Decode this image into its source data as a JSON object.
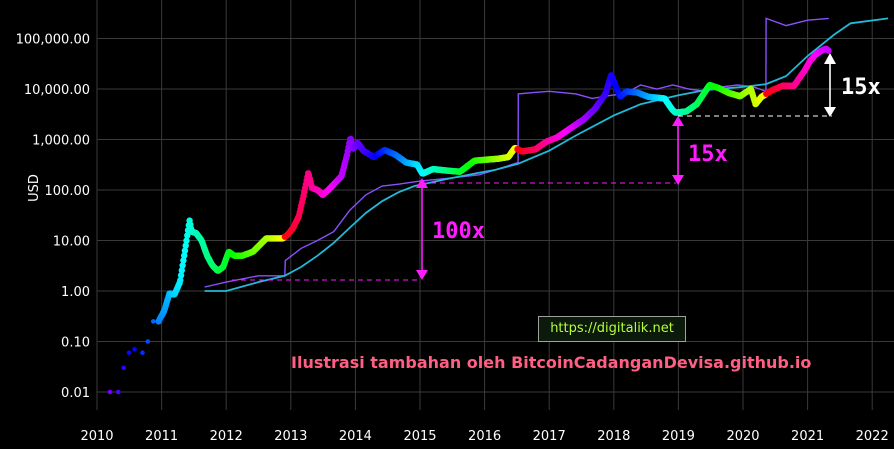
{
  "chart_data": {
    "type": "line",
    "scale": "log",
    "ylabel": "USD",
    "y_ticks": [
      0.01,
      0.1,
      1,
      10,
      100,
      1000,
      10000,
      100000
    ],
    "y_tick_labels": [
      "0.01",
      "0.10",
      "1.00",
      "10.00",
      "100.00",
      "1,000.00",
      "10,000.00",
      "100,000.00"
    ],
    "x_tick_labels": [
      "2010",
      "2011",
      "2012",
      "2013",
      "2014",
      "2015",
      "2016",
      "2017",
      "2018",
      "2019",
      "2020",
      "2021",
      "2022"
    ],
    "xlim": [
      "2010-01-01",
      "2022-04-01"
    ],
    "ylim": [
      0.005,
      300000
    ],
    "grid": true,
    "series": [
      {
        "color": "#ffffff",
        "style": "rainbow dots",
        "points": [
          [
            "2010-03-15",
            0.01
          ],
          [
            "2010-05-01",
            0.01
          ],
          [
            "2010-06-01",
            0.03
          ],
          [
            "2010-07-01",
            0.06
          ],
          [
            "2010-08-01",
            0.07
          ],
          [
            "2010-09-15",
            0.06
          ],
          [
            "2010-10-15",
            0.1
          ],
          [
            "2010-11-15",
            0.25
          ],
          [
            "2010-12-15",
            0.25
          ],
          [
            "2011-01-15",
            0.4
          ],
          [
            "2011-02-15",
            0.9
          ],
          [
            "2011-03-15",
            0.85
          ],
          [
            "2011-04-15",
            1.5
          ],
          [
            "2011-05-15",
            7
          ],
          [
            "2011-06-08",
            25
          ],
          [
            "2011-06-20",
            15
          ],
          [
            "2011-07-15",
            14
          ],
          [
            "2011-08-15",
            10
          ],
          [
            "2011-09-15",
            5
          ],
          [
            "2011-10-15",
            3.2
          ],
          [
            "2011-11-15",
            2.5
          ],
          [
            "2011-12-15",
            3
          ],
          [
            "2012-01-15",
            6
          ],
          [
            "2012-02-15",
            5
          ],
          [
            "2012-04-01",
            5
          ],
          [
            "2012-06-01",
            6
          ],
          [
            "2012-08-15",
            11
          ],
          [
            "2012-09-15",
            11
          ],
          [
            "2012-11-15",
            11
          ],
          [
            "2012-12-15",
            13
          ],
          [
            "2013-01-15",
            18
          ],
          [
            "2013-02-15",
            30
          ],
          [
            "2013-03-15",
            80
          ],
          [
            "2013-04-10",
            220
          ],
          [
            "2013-05-01",
            110
          ],
          [
            "2013-06-01",
            100
          ],
          [
            "2013-07-01",
            80
          ],
          [
            "2013-08-01",
            100
          ],
          [
            "2013-09-01",
            130
          ],
          [
            "2013-10-15",
            190
          ],
          [
            "2013-11-15",
            500
          ],
          [
            "2013-12-04",
            1100
          ],
          [
            "2013-12-20",
            650
          ],
          [
            "2014-01-15",
            850
          ],
          [
            "2014-02-15",
            600
          ],
          [
            "2014-04-15",
            450
          ],
          [
            "2014-06-15",
            620
          ],
          [
            "2014-08-15",
            500
          ],
          [
            "2014-10-15",
            350
          ],
          [
            "2014-12-15",
            320
          ],
          [
            "2015-01-15",
            210
          ],
          [
            "2015-03-15",
            260
          ],
          [
            "2015-06-15",
            240
          ],
          [
            "2015-08-15",
            230
          ],
          [
            "2015-11-05",
            380
          ],
          [
            "2016-01-15",
            400
          ],
          [
            "2016-03-15",
            415
          ],
          [
            "2016-05-15",
            450
          ],
          [
            "2016-06-20",
            680
          ],
          [
            "2016-08-01",
            580
          ],
          [
            "2016-10-15",
            640
          ],
          [
            "2016-12-15",
            900
          ],
          [
            "2017-02-15",
            1100
          ],
          [
            "2017-05-15",
            1800
          ],
          [
            "2017-07-15",
            2500
          ],
          [
            "2017-09-15",
            4000
          ],
          [
            "2017-11-15",
            8000
          ],
          [
            "2017-12-17",
            19000
          ],
          [
            "2018-02-06",
            7000
          ],
          [
            "2018-03-15",
            9000
          ],
          [
            "2018-05-15",
            8500
          ],
          [
            "2018-07-15",
            7000
          ],
          [
            "2018-10-15",
            6500
          ],
          [
            "2018-11-25",
            4000
          ],
          [
            "2018-12-15",
            3400
          ],
          [
            "2019-02-15",
            3600
          ],
          [
            "2019-04-15",
            5000
          ],
          [
            "2019-06-26",
            12000
          ],
          [
            "2019-08-15",
            10500
          ],
          [
            "2019-10-15",
            8300
          ],
          [
            "2019-12-15",
            7200
          ],
          [
            "2020-02-15",
            10000
          ],
          [
            "2020-03-12",
            5000
          ],
          [
            "2020-04-15",
            7000
          ],
          [
            "2020-06-15",
            9500
          ],
          [
            "2020-08-15",
            11700
          ],
          [
            "2020-10-15",
            11500
          ],
          [
            "2020-12-15",
            23000
          ],
          [
            "2021-01-15",
            36000
          ],
          [
            "2021-02-15",
            48000
          ],
          [
            "2021-03-15",
            56000
          ],
          [
            "2021-04-14",
            63000
          ],
          [
            "2021-05-01",
            57000
          ]
        ]
      },
      {
        "color": "#8a4fff",
        "points": [
          [
            "2011-09-01",
            1.2
          ],
          [
            "2012-01-01",
            1.5
          ],
          [
            "2012-07-01",
            2
          ],
          [
            "2012-11-28",
            2
          ],
          [
            "2012-12-01",
            4
          ],
          [
            "2013-03-01",
            7
          ],
          [
            "2013-06-01",
            10
          ],
          [
            "2013-09-01",
            15
          ],
          [
            "2013-12-01",
            40
          ],
          [
            "2014-03-01",
            80
          ],
          [
            "2014-06-01",
            120
          ],
          [
            "2014-09-01",
            130
          ],
          [
            "2015-01-01",
            150
          ],
          [
            "2015-06-01",
            170
          ],
          [
            "2015-12-01",
            200
          ],
          [
            "2016-03-01",
            250
          ],
          [
            "2016-07-09",
            350
          ],
          [
            "2016-07-10",
            8000
          ],
          [
            "2016-10-01",
            8500
          ],
          [
            "2017-01-01",
            9000
          ],
          [
            "2017-06-01",
            8000
          ],
          [
            "2017-09-01",
            6500
          ],
          [
            "2017-12-17",
            7500
          ],
          [
            "2018-03-01",
            8000
          ],
          [
            "2018-06-01",
            12000
          ],
          [
            "2018-09-01",
            10000
          ],
          [
            "2018-12-01",
            12000
          ],
          [
            "2019-03-01",
            10000
          ],
          [
            "2019-06-01",
            9000
          ],
          [
            "2019-09-01",
            11000
          ],
          [
            "2019-12-01",
            12000
          ],
          [
            "2020-03-01",
            11000
          ],
          [
            "2020-05-10",
            9000
          ],
          [
            "2020-05-11",
            250000
          ],
          [
            "2020-09-01",
            180000
          ],
          [
            "2021-01-01",
            230000
          ],
          [
            "2021-05-01",
            250000
          ]
        ]
      },
      {
        "color": "#22b8d8",
        "points": [
          [
            "2011-09-01",
            1
          ],
          [
            "2012-01-01",
            1
          ],
          [
            "2012-07-01",
            1.5
          ],
          [
            "2012-11-28",
            2
          ],
          [
            "2013-03-01",
            3
          ],
          [
            "2013-06-01",
            5
          ],
          [
            "2013-09-01",
            9
          ],
          [
            "2013-12-01",
            18
          ],
          [
            "2014-03-01",
            35
          ],
          [
            "2014-06-01",
            60
          ],
          [
            "2014-09-01",
            90
          ],
          [
            "2014-12-01",
            120
          ],
          [
            "2015-03-01",
            140
          ],
          [
            "2015-06-01",
            165
          ],
          [
            "2015-09-01",
            190
          ],
          [
            "2015-12-01",
            220
          ],
          [
            "2016-03-01",
            250
          ],
          [
            "2016-07-09",
            330
          ],
          [
            "2016-10-01",
            440
          ],
          [
            "2017-01-01",
            600
          ],
          [
            "2017-06-01",
            1200
          ],
          [
            "2018-01-01",
            3000
          ],
          [
            "2018-06-01",
            5000
          ],
          [
            "2019-01-01",
            7500
          ],
          [
            "2019-06-01",
            9500
          ],
          [
            "2020-01-01",
            11000
          ],
          [
            "2020-05-11",
            12500
          ],
          [
            "2020-09-01",
            18000
          ],
          [
            "2021-01-01",
            45000
          ],
          [
            "2021-06-01",
            120000
          ],
          [
            "2021-09-01",
            200000
          ],
          [
            "2022-04-01",
            250000
          ]
        ]
      }
    ],
    "annotations": [
      {
        "text": "100x",
        "color": "#ff1aff"
      },
      {
        "text": "15x",
        "color": "#ff1aff"
      },
      {
        "text": "15x",
        "color": "#ffffff"
      }
    ]
  },
  "url_box": "https://digitalik.net",
  "credit": "Ilustrasi tambahan oleh BitcoinCadanganDevisa.github.io"
}
